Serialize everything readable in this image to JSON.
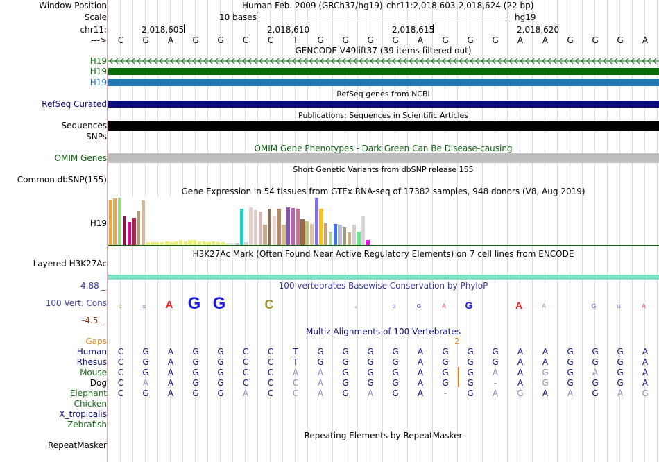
{
  "header": {
    "label_window_position": "Window Position",
    "label_scale": "Scale",
    "label_chrom": "chr11:",
    "label_arrow": "--->",
    "assembly_text": "Human Feb. 2009 (GRCh37/hg19)",
    "position_text": "chr11:2,018,603-2,018,624 (22 bp)",
    "scale_text": "10 bases",
    "db_text": "hg19",
    "coord_labels": [
      "2,018,605",
      "2,018,610",
      "2,018,615",
      "2,018,620"
    ],
    "bases": [
      "C",
      "G",
      "A",
      "G",
      "G",
      "C",
      "C",
      "T",
      "G",
      "G",
      "G",
      "G",
      "A",
      "G",
      "G",
      "G",
      "A",
      "A",
      "G",
      "G",
      "G",
      "A"
    ]
  },
  "tracks": {
    "gencode": {
      "title": "GENCODE V49lift37 (39 items filtered out)",
      "rows": [
        "H19",
        "H19",
        "H19"
      ],
      "colors": [
        "#0b7a0b",
        "#0b6e0b",
        "#1f78b4"
      ]
    },
    "refseq": {
      "title": "RefSeq genes from NCBI",
      "label": "RefSeq Curated",
      "color": "#0c0c78"
    },
    "publications": {
      "title": "Publications: Sequences in Scientific Articles",
      "label": "Sequences",
      "color": "#000000"
    },
    "snps": {
      "label": "SNPs"
    },
    "omim": {
      "title": "OMIM Gene Phenotypes - Dark Green Can Be Disease-causing",
      "label": "OMIM Genes",
      "color": "#bebebe"
    },
    "dbsnp": {
      "title": "Short Genetic Variants from dbSNP release 155",
      "label": "Common dbSNP(155)"
    },
    "gtex": {
      "title": "Gene Expression in 54 tissues from GTEx RNA-seq of 17382 samples, 948 donors (V8, Aug 2019)",
      "label": "H19",
      "values": [
        0.95,
        0.98,
        1.0,
        0.6,
        0.48,
        0.58,
        0.72,
        0.94,
        0.06,
        0.06,
        0.06,
        0.06,
        0.08,
        0.06,
        0.08,
        0.1,
        0.08,
        0.1,
        0.1,
        0.08,
        0.08,
        0.06,
        0.08,
        0.06,
        0.06,
        0.02,
        0.02,
        0.02,
        0.76,
        0.06,
        0.8,
        0.74,
        0.7,
        0.42,
        0.76,
        0.6,
        0.76,
        0.42,
        0.8,
        0.78,
        0.76,
        0.54,
        0.5,
        0.44,
        1.0,
        0.76,
        0.46,
        0.28,
        0.44,
        0.42,
        0.38,
        0.26,
        0.42,
        0.28,
        0.6,
        0.1
      ],
      "colors": [
        "#f4a53e",
        "#d7a970",
        "#a3d390",
        "#7b1d48",
        "#c71585",
        "#a3214a",
        "#b39977",
        "#d2b99d",
        "#ebeb6e",
        "#ebeb6e",
        "#ebeb6e",
        "#ebeb6e",
        "#ebeb6e",
        "#ebeb6e",
        "#ebeb6e",
        "#ebeb6e",
        "#ebeb6e",
        "#ebeb6e",
        "#ebeb6e",
        "#ebeb6e",
        "#ebeb6e",
        "#ebeb6e",
        "#ebeb6e",
        "#ebeb6e",
        "#ebeb6e",
        "#dde8dd",
        "#dde8dd",
        "#bfbfbf",
        "#1fcfcf",
        "#cfcfcf",
        "#e8cdcd",
        "#e0c8c8",
        "#d7b9b9",
        "#c7b08f",
        "#8b6f5b",
        "#ecd0d0",
        "#b48a64",
        "#d5b890",
        "#8c4fbf",
        "#c05eb2",
        "#cc7796",
        "#a06840",
        "#cec27d",
        "#dcc5a9",
        "#8471e3",
        "#f3c42f",
        "#c9a27c",
        "#adcfad",
        "#3c6ff0",
        "#b8b8dd",
        "#a19d82",
        "#c8b089",
        "#dacccc",
        "#6fe78e",
        "#d6d6d6",
        "#ff00ff"
      ]
    },
    "h3k27ac": {
      "title": "H3K27Ac Mark (Often Found Near Active Regulatory Elements) on 7 cell lines from ENCODE",
      "label": "Layered H3K27Ac",
      "color": "#7fe0c4"
    },
    "phylop": {
      "title": "100 vertebrates Basewise Conservation by PhyloP",
      "label": "100 Vert. Cons",
      "max_label": "4.88 _",
      "min_label": "-4.5 _"
    },
    "multiz": {
      "title": "Multiz Alignments of 100 Vertebrates",
      "gap_label": "Gaps",
      "gap_count": "2",
      "species": [
        {
          "name": "Human",
          "color": "#0c0c78",
          "seq": [
            "C",
            "G",
            "A",
            "G",
            "G",
            "C",
            "C",
            "T",
            "G",
            "G",
            "G",
            "G",
            "A",
            "G",
            "G",
            "G",
            "A",
            "A",
            "G",
            "G",
            "G",
            "A"
          ]
        },
        {
          "name": "Rhesus",
          "color": "#0c0c78",
          "seq": [
            "C",
            "G",
            "A",
            "G",
            "G",
            "C",
            "C",
            "T",
            "G",
            "G",
            "G",
            "G",
            "A",
            "G",
            "G",
            "G",
            "A",
            "A",
            "G",
            "G",
            "G",
            "A"
          ]
        },
        {
          "name": "Mouse",
          "color": "#1a6a1a",
          "seq": [
            "C",
            "G",
            "A",
            "G",
            "G",
            "C",
            "C",
            "A",
            "A",
            "G",
            "G",
            "G",
            "A",
            "G",
            "G",
            "A",
            "A",
            "G",
            "G",
            "A",
            "G",
            "A"
          ]
        },
        {
          "name": "Dog",
          "color": "#000000",
          "seq": [
            "C",
            "A",
            "A",
            "G",
            "G",
            "C",
            "C",
            "C",
            "A",
            "G",
            "G",
            "G",
            "A",
            "G",
            "G",
            "-",
            "A",
            "G",
            "G",
            "G",
            "G",
            "A"
          ]
        },
        {
          "name": "Elephant",
          "color": "#1a6a1a",
          "seq": [
            "C",
            "G",
            "A",
            "G",
            "G",
            "A",
            "C",
            "C",
            "A",
            "G",
            "A",
            "G",
            "A",
            "-",
            "G",
            "A",
            "G",
            "A",
            "A",
            "G",
            "A",
            "G"
          ]
        },
        {
          "name": "Chicken",
          "color": "#1a6a1a",
          "seq": []
        },
        {
          "name": "X_tropicalis",
          "color": "#0c0c78",
          "seq": []
        },
        {
          "name": "Zebrafish",
          "color": "#1a6a1a",
          "seq": []
        }
      ]
    },
    "repeatmasker": {
      "title": "Repeating Elements by RepeatMasker",
      "label": "RepeatMasker"
    }
  }
}
